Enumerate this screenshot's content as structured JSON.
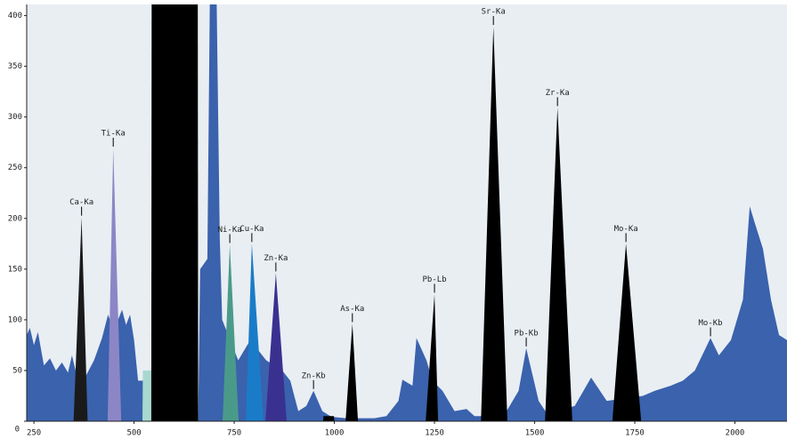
{
  "chart_data": {
    "type": "area",
    "xlim": [
      232,
      2130
    ],
    "ylim": [
      0,
      411
    ],
    "xticks": [
      250,
      500,
      750,
      1000,
      1250,
      1500,
      1750,
      2000
    ],
    "yticks": [
      0,
      50,
      100,
      150,
      200,
      250,
      300,
      350,
      400
    ],
    "background": {
      "color": "#3a62ad",
      "x": [
        232,
        240,
        250,
        260,
        275,
        290,
        305,
        320,
        335,
        345,
        360,
        380,
        400,
        420,
        435,
        450,
        470,
        480,
        490,
        500,
        510,
        525,
        560,
        575,
        660,
        665,
        683,
        690,
        705,
        714,
        720,
        760,
        790,
        830,
        870,
        890,
        910,
        930,
        948,
        970,
        990,
        1000,
        1030,
        1060,
        1100,
        1130,
        1160,
        1170,
        1195,
        1205,
        1230,
        1245,
        1270,
        1300,
        1330,
        1350,
        1380,
        1430,
        1460,
        1479,
        1510,
        1530,
        1600,
        1641,
        1680,
        1770,
        1800,
        1840,
        1870,
        1900,
        1939,
        1960,
        1990,
        2020,
        2037,
        2050,
        2070,
        2090,
        2110,
        2130
      ],
      "values": [
        85,
        92,
        75,
        88,
        55,
        62,
        50,
        58,
        48,
        65,
        40,
        45,
        60,
        82,
        105,
        90,
        110,
        95,
        105,
        80,
        40,
        40,
        45,
        0,
        0,
        150,
        160,
        450,
        450,
        180,
        100,
        60,
        80,
        60,
        50,
        40,
        10,
        15,
        30,
        10,
        5,
        4,
        3,
        3,
        3,
        5,
        20,
        41,
        35,
        82,
        60,
        40,
        30,
        10,
        12,
        5,
        5,
        10,
        30,
        72,
        20,
        8,
        15,
        43,
        20,
        25,
        30,
        35,
        40,
        50,
        82,
        65,
        80,
        120,
        212,
        195,
        170,
        120,
        85,
        80
      ]
    },
    "peaks": [
      {
        "color": "#a8d8d0",
        "x": [
          521,
          522,
          554,
          555
        ],
        "values": [
          0,
          50,
          50,
          0
        ]
      },
      {
        "color": "#000000",
        "x": [
          543,
          544,
          659,
          660
        ],
        "values": [
          0,
          450,
          450,
          0
        ]
      },
      {
        "color": "#000000",
        "x": [
          972,
          973,
          999,
          1000
        ],
        "values": [
          0,
          5,
          5,
          0
        ]
      },
      {
        "label": "Ca-Ka",
        "color": "#1a1a1a",
        "x": [
          349,
          369,
          384
        ],
        "values": [
          0,
          201,
          0
        ]
      },
      {
        "label": "Ti-Ka",
        "color": "#8c86c6",
        "x": [
          434,
          448,
          468
        ],
        "values": [
          0,
          269,
          0
        ]
      },
      {
        "label": "Ni-Ka",
        "color": "#4a9a8a",
        "x": [
          721,
          739,
          761
        ],
        "values": [
          0,
          174,
          0
        ]
      },
      {
        "label": "Cu-Ka",
        "color": "#1a7cc8",
        "x": [
          779,
          794,
          823
        ],
        "values": [
          0,
          175,
          0
        ]
      },
      {
        "label": "Zn-Ka",
        "color": "#3a3090",
        "x": [
          828,
          854,
          881
        ],
        "values": [
          0,
          146,
          0
        ]
      },
      {
        "label": "Zn-Kb",
        "x": [
          948
        ],
        "values": [
          30
        ]
      },
      {
        "label": "As-Ka",
        "color": "#000000",
        "x": [
          1028,
          1045,
          1059
        ],
        "values": [
          0,
          96,
          0
        ]
      },
      {
        "label": "Pb-Lb",
        "color": "#000000",
        "x": [
          1228,
          1250,
          1259
        ],
        "values": [
          0,
          125,
          0
        ]
      },
      {
        "label": "Sr-Ka",
        "color": "#000000",
        "x": [
          1366,
          1397,
          1432
        ],
        "values": [
          0,
          389,
          0
        ]
      },
      {
        "label": "Pb-Kb",
        "x": [
          1479
        ],
        "values": [
          72
        ]
      },
      {
        "label": "Zr-Ka",
        "color": "#000000",
        "x": [
          1526,
          1557,
          1594
        ],
        "values": [
          0,
          309,
          0
        ]
      },
      {
        "label": "Mo-Ka",
        "color": "#000000",
        "x": [
          1694,
          1728,
          1766
        ],
        "values": [
          0,
          175,
          0
        ]
      },
      {
        "label": "Mo-Kb",
        "x": [
          1939
        ],
        "values": [
          82
        ]
      }
    ]
  }
}
